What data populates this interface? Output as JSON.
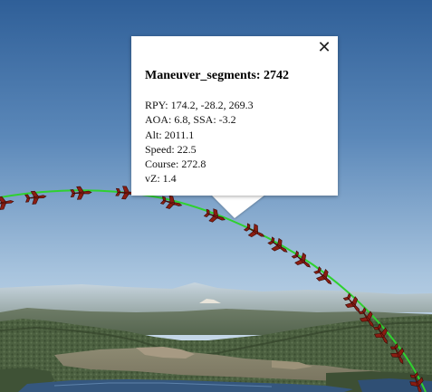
{
  "popup": {
    "title": "Maneuver_segments: 2742",
    "close_glyph": "✕",
    "lines": [
      "RPY: 174.2, -28.2, 269.3",
      "AOA: 6.8, SSA: -3.2",
      "Alt: 2011.1",
      "Speed: 22.5",
      "Course: 272.8",
      "vZ: 1.4"
    ]
  },
  "map": {
    "track_color": "#2fd12f",
    "aircraft_marker_color": "#8b1d12",
    "icons": [
      "aircraft-marker-icon",
      "close-icon"
    ]
  }
}
